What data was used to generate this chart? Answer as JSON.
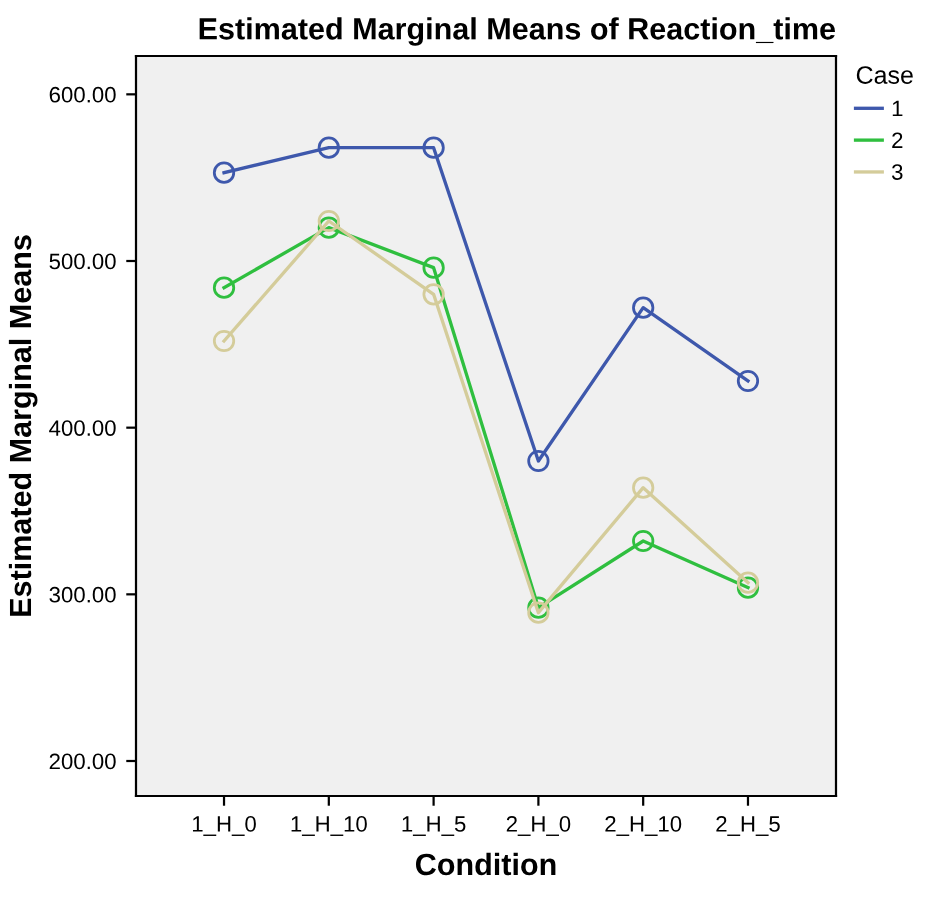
{
  "chart_data": {
    "type": "line",
    "title": "Estimated Marginal Means of Reaction_time",
    "xlabel": "Condition",
    "ylabel": "Estimated Marginal Means",
    "legend_title": "Case",
    "legend": "top right",
    "marker": "circle",
    "grid": false,
    "categories": [
      "1_H_0",
      "1_H_10",
      "1_H_5",
      "2_H_0",
      "2_H_10",
      "2_H_5"
    ],
    "ylim": [
      179,
      623
    ],
    "yticks": [
      {
        "value": 200,
        "label": "200.00"
      },
      {
        "value": 300,
        "label": "300.00"
      },
      {
        "value": 400,
        "label": "400.00"
      },
      {
        "value": 500,
        "label": "500.00"
      },
      {
        "value": 600,
        "label": "600.00"
      }
    ],
    "series": [
      {
        "name": "1",
        "color": "#3e58ac",
        "values": [
          553,
          568,
          568,
          380,
          472,
          428
        ]
      },
      {
        "name": "2",
        "color": "#2fbf3f",
        "values": [
          484,
          520,
          496,
          292,
          332,
          304
        ]
      },
      {
        "name": "3",
        "color": "#d4cc9a",
        "values": [
          452,
          524,
          480,
          289,
          364,
          307
        ]
      }
    ]
  }
}
